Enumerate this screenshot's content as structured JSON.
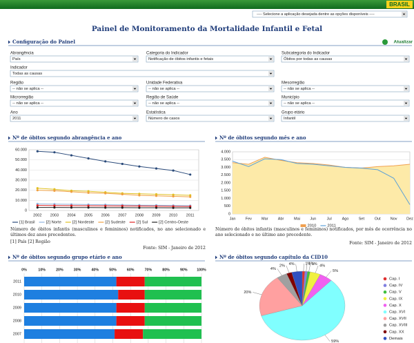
{
  "header": {
    "logo": "BRASIL",
    "app_select": "---- Selecione a aplicação desejada dentre as opções disponíveis ----"
  },
  "title": "Painel de Monitoramento da Mortalidade Infantil e Fetal",
  "config": {
    "title": "Configuração do Painel",
    "refresh": "Atualizar",
    "fields": [
      {
        "label": "Abrangência",
        "value": "País"
      },
      {
        "label": "Categoria do Indicador",
        "value": "Notificação de óbitos infantis e fetais"
      },
      {
        "label": "Subcategoria do Indicador",
        "value": "Óbitos por todas as causas"
      },
      {
        "label": "Indicador",
        "value": "Todas as causas"
      },
      {
        "label": "Região",
        "value": "-- não se aplica --"
      },
      {
        "label": "Unidade Federativa",
        "value": "-- não se aplica --"
      },
      {
        "label": "Mesorregião",
        "value": "-- não se aplica --"
      },
      {
        "label": "Microrregião",
        "value": "-- não se aplica --"
      },
      {
        "label": "Região de Saúde",
        "value": "-- não se aplica --"
      },
      {
        "label": "Município",
        "value": "-- não se aplica --"
      },
      {
        "label": "Ano",
        "value": "2011"
      },
      {
        "label": "Estatística",
        "value": "Número de casos"
      },
      {
        "label": "Grupo etário",
        "value": "Infantil"
      }
    ]
  },
  "chart_data": [
    {
      "type": "line",
      "title": "Nº de óbitos segundo abrangência e ano",
      "categories": [
        "2002",
        "2003",
        "2004",
        "2005",
        "2006",
        "2007",
        "2008",
        "2009",
        "2010",
        "2011"
      ],
      "ylim": [
        0,
        60000
      ],
      "yticks": [
        {
          "value": 0,
          "label": "0"
        },
        {
          "value": 10000,
          "label": "10.000"
        },
        {
          "value": 20000,
          "label": "20.000"
        },
        {
          "value": 30000,
          "label": "30.000"
        },
        {
          "value": 40000,
          "label": "40.000"
        },
        {
          "value": 50000,
          "label": "50.000"
        },
        {
          "value": 60000,
          "label": "60.000"
        }
      ],
      "grid": true,
      "series": [
        {
          "name": "[1] Brasil",
          "color": "#2a4a7a",
          "values": [
            58500,
            57500,
            54500,
            51500,
            48500,
            46000,
            43500,
            41500,
            39500,
            35500
          ]
        },
        {
          "name": "[2] Norte",
          "color": "#8fb4e0",
          "values": [
            6500,
            6300,
            6100,
            5900,
            5700,
            5500,
            5300,
            5200,
            5000,
            4800
          ]
        },
        {
          "name": "[2] Nordeste",
          "color": "#e0c020",
          "values": [
            22000,
            21000,
            19500,
            19000,
            18000,
            17000,
            16500,
            16000,
            15500,
            15000
          ]
        },
        {
          "name": "[2] Sudeste",
          "color": "#f0a040",
          "values": [
            20000,
            19500,
            18500,
            17500,
            17000,
            16000,
            15000,
            14500,
            14000,
            13500
          ]
        },
        {
          "name": "[2] Sul",
          "color": "#e02020",
          "values": [
            5000,
            4900,
            4800,
            4700,
            4600,
            4500,
            4400,
            4300,
            4100,
            4000
          ]
        },
        {
          "name": "[2] Centro-Oeste",
          "color": "#202020",
          "values": [
            3000,
            3000,
            2900,
            2900,
            2800,
            2800,
            2700,
            2700,
            2600,
            2600
          ]
        }
      ],
      "caption": "Número de óbitos infantis (masculinos e femininos) notificados, no ano selecionado e últimos dez anos precedentes.",
      "note": "[1] País [2] Região",
      "source": "Fonte: SIM - Janeiro de 2012"
    },
    {
      "type": "area",
      "title": "Nº de óbitos segundo mês e ano",
      "categories": [
        "Jan",
        "Fev",
        "Mar",
        "Abr",
        "Mai",
        "Jun",
        "Jul",
        "Ago",
        "Set",
        "Out",
        "Nov",
        "Dez"
      ],
      "ylim": [
        0,
        4000
      ],
      "yticks": [
        {
          "value": 0,
          "label": "0"
        },
        {
          "value": 500,
          "label": "500"
        },
        {
          "value": 1000,
          "label": "1.000"
        },
        {
          "value": 1500,
          "label": "1.500"
        },
        {
          "value": 2000,
          "label": "2.000"
        },
        {
          "value": 2500,
          "label": "2.500"
        },
        {
          "value": 3000,
          "label": "3.000"
        },
        {
          "value": 3500,
          "label": "3.500"
        },
        {
          "value": 4000,
          "label": "4.000"
        }
      ],
      "grid": true,
      "series": [
        {
          "name": "2010",
          "color": "#f0a050",
          "fill": "#fdeaa8",
          "values": [
            3300,
            3200,
            3650,
            3450,
            3300,
            3250,
            3150,
            3000,
            2950,
            3050,
            3100,
            3200
          ]
        },
        {
          "name": "2011",
          "color": "#5aa0d8",
          "values": [
            3400,
            3050,
            3550,
            3500,
            3250,
            3200,
            3100,
            3000,
            2950,
            2850,
            2300,
            600
          ]
        }
      ],
      "caption": "Número de óbitos infantis (masculinos e femininos) notificados, por mês de ocorrência no ano selecionado e no último ano precedente.",
      "source": "Fonte: SIM - Janeiro de 2012"
    },
    {
      "type": "stacked-hbar",
      "title": "Nº de óbitos segundo grupo etário e ano",
      "categories": [
        "2011",
        "2010",
        "2009",
        "2008",
        "2007"
      ],
      "xlim": [
        0,
        100
      ],
      "xticks": [
        {
          "value": 0,
          "label": "0%"
        },
        {
          "value": 10,
          "label": "10%"
        },
        {
          "value": 20,
          "label": "20%"
        },
        {
          "value": 30,
          "label": "30%"
        },
        {
          "value": 40,
          "label": "40%"
        },
        {
          "value": 50,
          "label": "50%"
        },
        {
          "value": 60,
          "label": "60%"
        },
        {
          "value": 70,
          "label": "70%"
        },
        {
          "value": 80,
          "label": "80%"
        },
        {
          "value": 90,
          "label": "90%"
        },
        {
          "value": 100,
          "label": "100%"
        }
      ],
      "series": [
        {
          "color": "#1e7fe0",
          "values": [
            52,
            53,
            52,
            52,
            51
          ]
        },
        {
          "color": "#e81010",
          "values": [
            16,
            15,
            16,
            16,
            16
          ]
        },
        {
          "color": "#20c050",
          "values": [
            32,
            32,
            32,
            32,
            33
          ]
        }
      ]
    },
    {
      "type": "pie",
      "title": "Nº de óbitos segundo capítulo da CID10",
      "categories": [
        "Cap. I",
        "Cap. IV",
        "Cap. V",
        "Cap. IX",
        "Cap. X",
        "Cap. XVI",
        "Cap. XVII",
        "Cap. XVIII",
        "Cap. XX",
        "Demais"
      ],
      "colors": [
        "#e03030",
        "#8080e0",
        "#40c040",
        "#f0f040",
        "#f060f0",
        "#80ffff",
        "#ffa0a0",
        "#a0a0a0",
        "#800000",
        "#3050c0"
      ],
      "values": [
        1,
        1,
        1,
        4,
        5,
        59,
        20,
        4,
        2,
        4
      ],
      "value_labels": [
        "1%",
        "1%",
        "1%",
        "4%",
        "5%",
        "59%",
        "20%",
        "4%",
        "2%",
        "4%"
      ]
    }
  ]
}
